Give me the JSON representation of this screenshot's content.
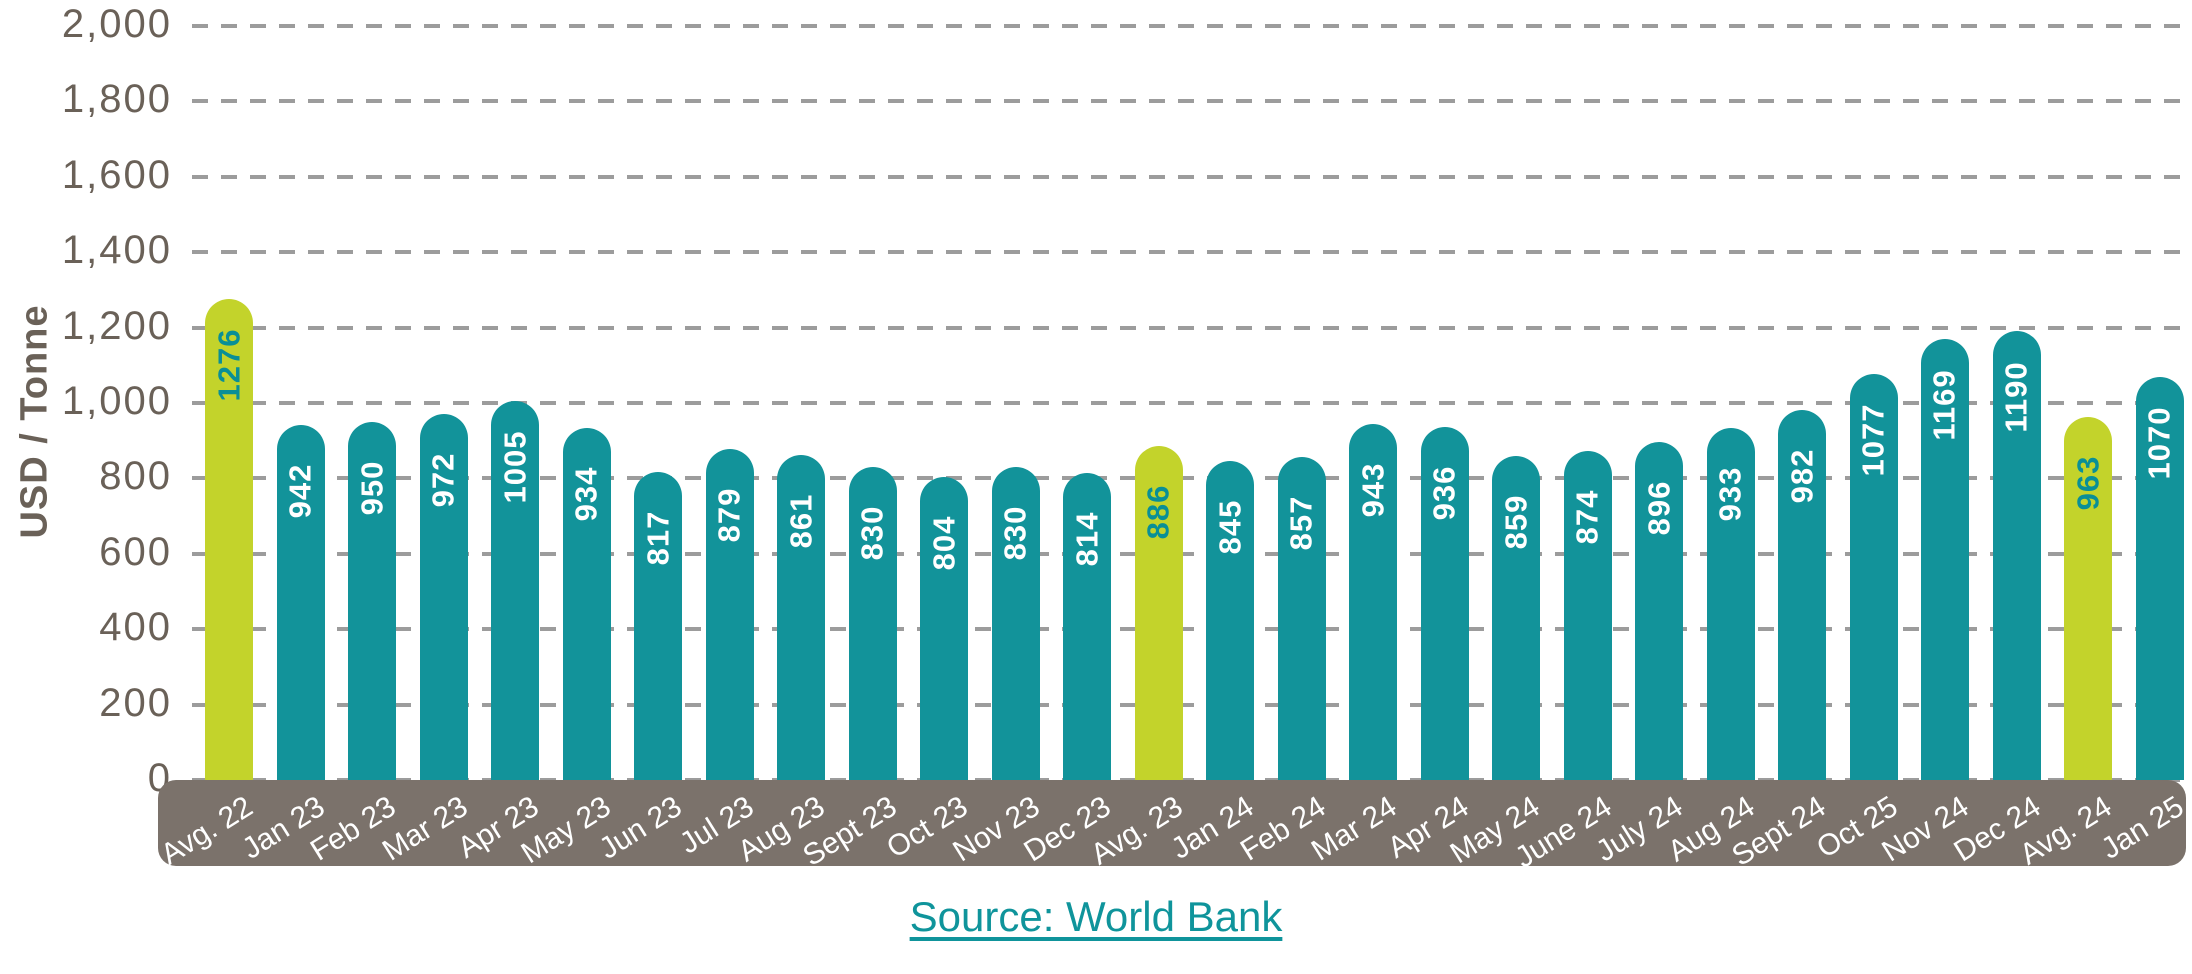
{
  "chart_data": {
    "type": "bar",
    "title": "",
    "xlabel": "",
    "ylabel": "USD / Tonne",
    "ylim": [
      0,
      2000
    ],
    "ytick_step": 200,
    "ytick_labels": [
      "0",
      "200",
      "400",
      "600",
      "800",
      "1,000",
      "1,200",
      "1,400",
      "1,600",
      "1,800",
      "2,000"
    ],
    "grid": "horizontal-dashed",
    "legend": "none",
    "categories": [
      "Avg. 22",
      "Jan 23",
      "Feb 23",
      "Mar 23",
      "Apr 23",
      "May 23",
      "Jun 23",
      "Jul 23",
      "Aug 23",
      "Sept 23",
      "Oct 23",
      "Nov 23",
      "Dec 23",
      "Avg. 23",
      "Jan 24",
      "Feb 24",
      "Mar 24",
      "Apr 24",
      "May 24",
      "June 24",
      "July 24",
      "Aug 24",
      "Sept 24",
      "Oct 25",
      "Nov 24",
      "Dec 24",
      "Avg. 24",
      "Jan 25"
    ],
    "values": [
      1276,
      942,
      950,
      972,
      1005,
      934,
      817,
      879,
      861,
      830,
      804,
      830,
      814,
      886,
      845,
      857,
      943,
      936,
      859,
      874,
      896,
      933,
      982,
      1077,
      1169,
      1190,
      963,
      1070
    ],
    "highlight_indices": [
      0,
      13,
      26
    ]
  },
  "colors": {
    "bar_teal": "#12939a",
    "bar_lime": "#c3d32b",
    "value_text_on_teal": "#ffffff",
    "value_text_on_lime": "#0a8f96",
    "axis_band": "#7b726b",
    "axis_text": "#6a6158",
    "x_label_text": "#ffffff",
    "gridline": "#9c9c9c",
    "link_teal": "#0f949b"
  },
  "source_link": {
    "label": "Source: World Bank"
  }
}
